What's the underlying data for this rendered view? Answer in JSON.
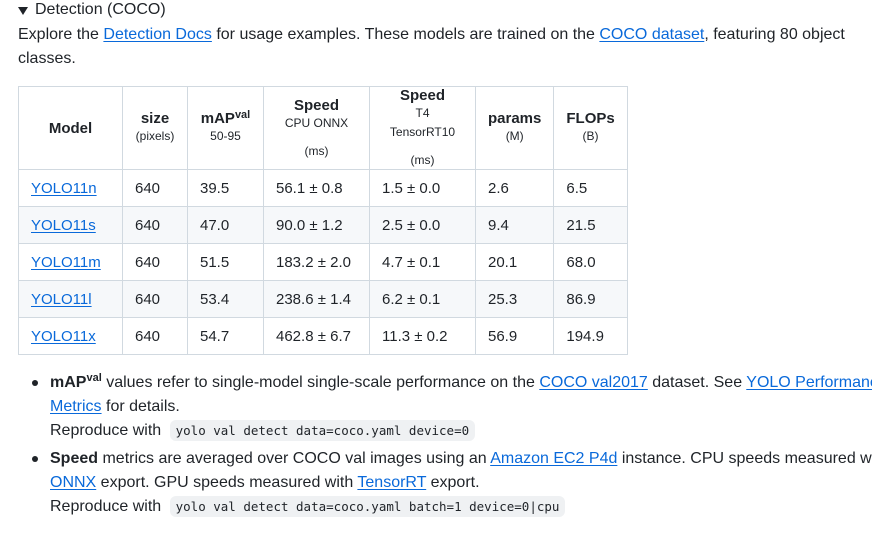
{
  "details": {
    "summary": "Detection (COCO)"
  },
  "intro": {
    "text_before_link1": "Explore the ",
    "link1": "Detection Docs",
    "text_between": " for usage examples. These models are trained on the ",
    "link2": "COCO dataset",
    "text_after": ", featuring 80 object classes."
  },
  "table": {
    "headers": {
      "model": "Model",
      "size_main": "size",
      "size_sub": "(pixels)",
      "map_main": "mAP",
      "map_sup": "val",
      "map_sub": "50-95",
      "cpu_main": "Speed",
      "cpu_sub": "CPU ONNX",
      "cpu_unit": "(ms)",
      "gpu_main": "Speed",
      "gpu_sub": "T4 TensorRT10",
      "gpu_unit": "(ms)",
      "params_main": "params",
      "params_sub": "(M)",
      "flops_main": "FLOPs",
      "flops_sub": "(B)"
    },
    "rows": [
      {
        "model": "YOLO11n",
        "size": "640",
        "map": "39.5",
        "cpu": "56.1 ± 0.8",
        "gpu": "1.5 ± 0.0",
        "params": "2.6",
        "flops": "6.5"
      },
      {
        "model": "YOLO11s",
        "size": "640",
        "map": "47.0",
        "cpu": "90.0 ± 1.2",
        "gpu": "2.5 ± 0.0",
        "params": "9.4",
        "flops": "21.5"
      },
      {
        "model": "YOLO11m",
        "size": "640",
        "map": "51.5",
        "cpu": "183.2 ± 2.0",
        "gpu": "4.7 ± 0.1",
        "params": "20.1",
        "flops": "68.0"
      },
      {
        "model": "YOLO11l",
        "size": "640",
        "map": "53.4",
        "cpu": "238.6 ± 1.4",
        "gpu": "6.2 ± 0.1",
        "params": "25.3",
        "flops": "86.9"
      },
      {
        "model": "YOLO11x",
        "size": "640",
        "map": "54.7",
        "cpu": "462.8 ± 6.7",
        "gpu": "11.3 ± 0.2",
        "params": "56.9",
        "flops": "194.9"
      }
    ]
  },
  "notes": {
    "map": {
      "term": "mAP",
      "term_sup": "val",
      "text1": " values refer to single-model single-scale performance on the ",
      "link1": "COCO val2017",
      "text2": " dataset. See ",
      "link2": "YOLO Performance Metrics",
      "text3": " for details.",
      "reproduce_label": "Reproduce with",
      "code": "yolo val detect data=coco.yaml device=0"
    },
    "speed": {
      "term": "Speed",
      "text1": " metrics are averaged over COCO val images using an ",
      "link1": "Amazon EC2 P4d",
      "text2": " instance. CPU speeds measured with ",
      "link2": "ONNX",
      "text3": " export. GPU speeds measured with ",
      "link3": "TensorRT",
      "text4": " export.",
      "reproduce_label": "Reproduce with",
      "code": "yolo val detect data=coco.yaml batch=1 device=0|cpu"
    }
  },
  "colors": {
    "link": "#0969da",
    "text": "#1f2328",
    "border": "#d1d9e0",
    "stripe": "#f6f8fa",
    "code_bg": "#eff1f3"
  }
}
